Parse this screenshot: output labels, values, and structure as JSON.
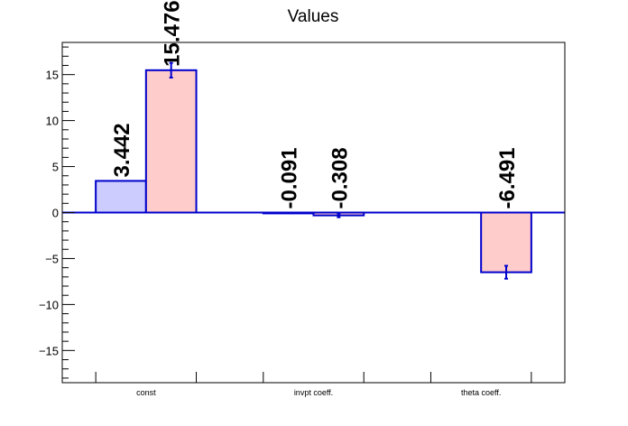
{
  "chart_data": {
    "type": "bar",
    "title": "Values",
    "categories": [
      "const",
      "invpt coeff.",
      "theta coeff."
    ],
    "ylim": [
      -18.5,
      18.5
    ],
    "yticks": [
      -15,
      -10,
      -5,
      0,
      5,
      10,
      15
    ],
    "ytick_labels": [
      "−15",
      "−10",
      "−5",
      "0",
      "5",
      "10",
      "15"
    ],
    "series": [
      {
        "values": [
          3.442,
          -0.091,
          0
        ],
        "errors": [
          0,
          0,
          0
        ],
        "fill": "#ccccff",
        "stroke": "#0000cc"
      },
      {
        "values": [
          15.476,
          -0.308,
          -6.491
        ],
        "errors": [
          0.8,
          0.2,
          0.7
        ],
        "fill": "#ffcccc",
        "stroke": "#0000cc"
      }
    ],
    "data_labels": [
      [
        "3.442",
        "-0.091",
        ""
      ],
      [
        "15.476",
        "-0.308",
        "-6.491"
      ]
    ],
    "grid": false,
    "legend": "none"
  }
}
